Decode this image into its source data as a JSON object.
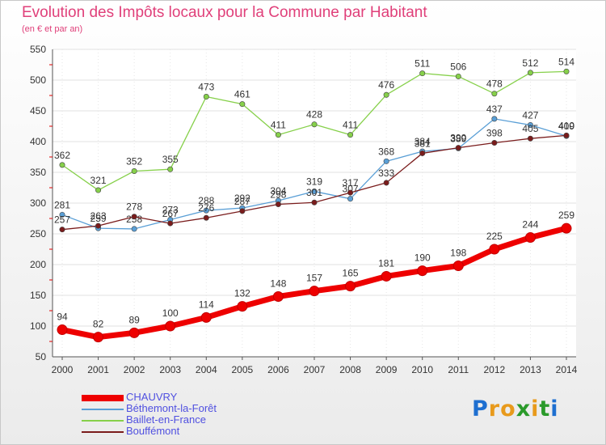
{
  "chart_data": {
    "type": "line",
    "title": "Evolution des Impôts locaux pour la Commune par Habitant",
    "subtitle": "(en € et par an)",
    "xlabel": "",
    "ylabel": "",
    "categories": [
      "2000",
      "2001",
      "2002",
      "2003",
      "2004",
      "2005",
      "2006",
      "2007",
      "2008",
      "2009",
      "2010",
      "2011",
      "2012",
      "2013",
      "2014"
    ],
    "ylim": [
      50,
      550
    ],
    "yticks": [
      50,
      100,
      150,
      200,
      250,
      300,
      350,
      400,
      450,
      500,
      550
    ],
    "grid": true,
    "legend_position": "bottom-left",
    "series": [
      {
        "name": "CHAUVRY",
        "color": "#ee0000",
        "values": [
          94,
          82,
          89,
          100,
          114,
          132,
          148,
          157,
          165,
          181,
          190,
          198,
          225,
          244,
          259
        ]
      },
      {
        "name": "Béthemont-la-Forêt",
        "color": "#5a9fd6",
        "values": [
          281,
          259,
          258,
          273,
          288,
          292,
          304,
          319,
          307,
          368,
          384,
          389,
          437,
          427,
          409
        ]
      },
      {
        "name": "Baillet-en-France",
        "color": "#86d04a",
        "values": [
          362,
          321,
          352,
          355,
          473,
          461,
          411,
          428,
          411,
          476,
          511,
          506,
          478,
          512,
          514
        ]
      },
      {
        "name": "Bouffémont",
        "color": "#7a1c1c",
        "values": [
          257,
          263,
          278,
          267,
          276,
          287,
          298,
          301,
          317,
          333,
          381,
          390,
          398,
          405,
          410
        ]
      }
    ]
  },
  "brand": {
    "text": "Proxiti",
    "letter_colors": [
      "#1e6fd0",
      "#e89a1c",
      "#e89a1c",
      "#2a9a2a",
      "#e89a1c",
      "#2a9a2a",
      "#1e6fd0"
    ]
  }
}
